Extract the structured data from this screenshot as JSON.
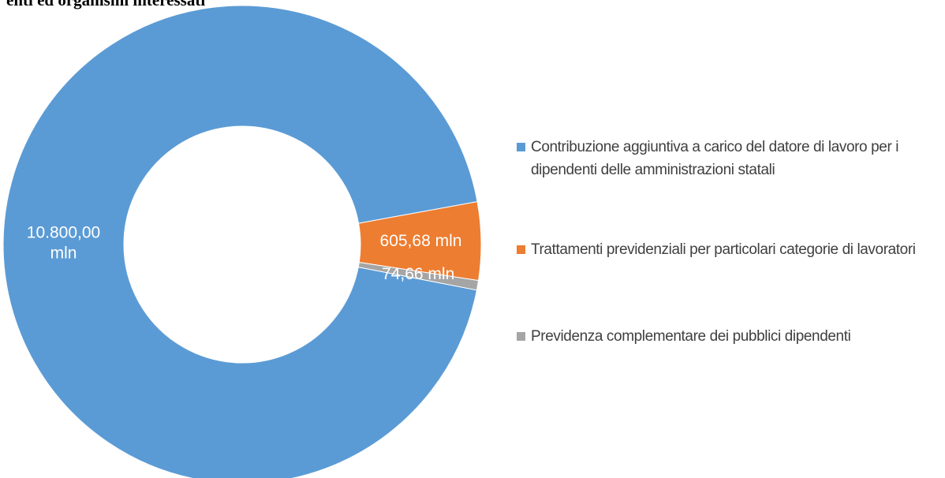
{
  "chart_data": {
    "type": "donut",
    "title": "enti ed organismi interessati",
    "categories": [
      "Contribuzione aggiuntiva a carico del datore di lavoro per i dipendenti delle amministrazioni statali",
      "Trattamenti previdenziali per particolari categorie di lavoratori",
      "Previdenza complementare dei pubblici dipendenti"
    ],
    "values": [
      10800,
      605.68,
      74.66
    ],
    "value_labels": [
      "10.800,00 mln",
      "605,68 mln",
      "74,66 mln"
    ],
    "colors": [
      "#5b9bd5",
      "#ed7d31",
      "#a5a5a5"
    ],
    "start_angle": 101,
    "legend": "right"
  }
}
